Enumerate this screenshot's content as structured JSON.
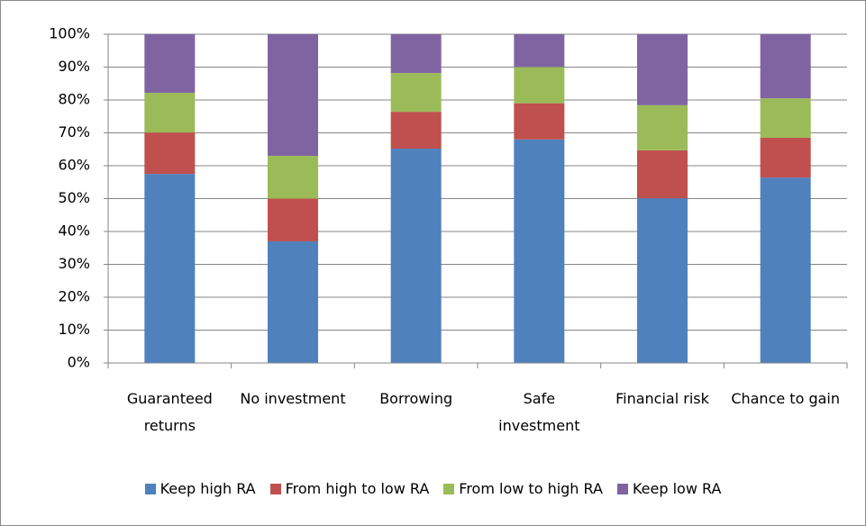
{
  "chart_data": {
    "type": "stacked_bar",
    "categories": [
      "Guaranteed returns",
      "No investment",
      "Borrowing",
      "Safe investment",
      "Financial risk",
      "Chance to gain"
    ],
    "series": [
      {
        "name": "Keep high RA",
        "color": "#4f81bd",
        "values": [
          57.5,
          37,
          65.2,
          68,
          50.1,
          56.4
        ]
      },
      {
        "name": "From high to low RA",
        "color": "#c0504d",
        "values": [
          12.6,
          13,
          11.2,
          11,
          14.6,
          12.1
        ]
      },
      {
        "name": "From low to high RA",
        "color": "#9bbb59",
        "values": [
          12.1,
          13,
          11.8,
          11,
          13.7,
          12
        ]
      },
      {
        "name": "Keep low RA",
        "color": "#8064a2",
        "values": [
          17.8,
          37,
          11.8,
          10,
          21.6,
          19.5
        ]
      }
    ],
    "ylim": [
      0,
      100
    ],
    "yticks": [
      {
        "value": 0,
        "label": "0%"
      },
      {
        "value": 10,
        "label": "10%"
      },
      {
        "value": 20,
        "label": "20%"
      },
      {
        "value": 30,
        "label": "30%"
      },
      {
        "value": 40,
        "label": "40%"
      },
      {
        "value": 50,
        "label": "50%"
      },
      {
        "value": 60,
        "label": "60%"
      },
      {
        "value": 70,
        "label": "70%"
      },
      {
        "value": 80,
        "label": "80%"
      },
      {
        "value": 90,
        "label": "90%"
      },
      {
        "value": 100,
        "label": "100%"
      }
    ],
    "grid": true,
    "legend": "bottom"
  }
}
